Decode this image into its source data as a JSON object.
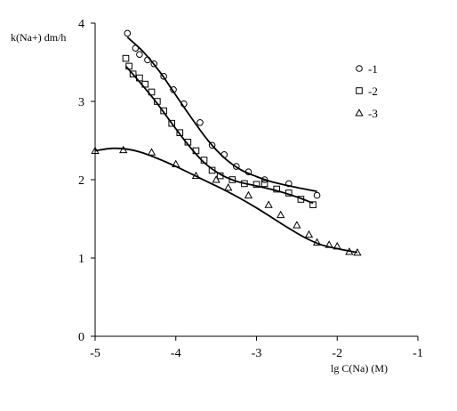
{
  "chart_data": {
    "type": "scatter",
    "title": "",
    "xlabel": "lg C(Na) (M)",
    "ylabel": "k(Na+) dm/h",
    "xlim": [
      -5,
      -1
    ],
    "ylim": [
      0,
      4
    ],
    "x_ticks": [
      "-5",
      "-4",
      "-3",
      "-2",
      "-1"
    ],
    "y_ticks": [
      "0",
      "1",
      "2",
      "3",
      "4"
    ],
    "grid": false,
    "legend_position": "top-right",
    "color": "#000000",
    "series": [
      {
        "name": "-1",
        "marker": "circle",
        "points": [
          [
            -4.6,
            3.87
          ],
          [
            -4.5,
            3.68
          ],
          [
            -4.45,
            3.6
          ],
          [
            -4.35,
            3.53
          ],
          [
            -4.27,
            3.48
          ],
          [
            -4.15,
            3.32
          ],
          [
            -4.03,
            3.15
          ],
          [
            -3.9,
            2.97
          ],
          [
            -3.7,
            2.73
          ],
          [
            -3.55,
            2.44
          ],
          [
            -3.4,
            2.32
          ],
          [
            -3.25,
            2.17
          ],
          [
            -3.1,
            2.1
          ],
          [
            -2.9,
            2.0
          ],
          [
            -2.6,
            1.95
          ],
          [
            -2.25,
            1.8
          ]
        ],
        "fit": [
          [
            -4.6,
            3.82
          ],
          [
            -4.4,
            3.63
          ],
          [
            -4.2,
            3.38
          ],
          [
            -4.0,
            3.08
          ],
          [
            -3.8,
            2.78
          ],
          [
            -3.6,
            2.5
          ],
          [
            -3.4,
            2.28
          ],
          [
            -3.2,
            2.13
          ],
          [
            -3.0,
            2.04
          ],
          [
            -2.8,
            1.97
          ],
          [
            -2.5,
            1.9
          ],
          [
            -2.25,
            1.85
          ]
        ]
      },
      {
        "name": "-2",
        "marker": "square",
        "points": [
          [
            -4.62,
            3.55
          ],
          [
            -4.58,
            3.45
          ],
          [
            -4.53,
            3.35
          ],
          [
            -4.45,
            3.3
          ],
          [
            -4.38,
            3.22
          ],
          [
            -4.3,
            3.12
          ],
          [
            -4.23,
            3.0
          ],
          [
            -4.15,
            2.88
          ],
          [
            -4.05,
            2.72
          ],
          [
            -3.95,
            2.6
          ],
          [
            -3.85,
            2.48
          ],
          [
            -3.75,
            2.37
          ],
          [
            -3.65,
            2.25
          ],
          [
            -3.55,
            2.12
          ],
          [
            -3.45,
            2.05
          ],
          [
            -3.3,
            2.0
          ],
          [
            -3.15,
            1.95
          ],
          [
            -3.0,
            1.94
          ],
          [
            -2.9,
            1.95
          ],
          [
            -2.75,
            1.88
          ],
          [
            -2.6,
            1.83
          ],
          [
            -2.45,
            1.75
          ],
          [
            -2.3,
            1.68
          ]
        ],
        "fit": [
          [
            -4.62,
            3.45
          ],
          [
            -4.45,
            3.25
          ],
          [
            -4.25,
            3.0
          ],
          [
            -4.05,
            2.72
          ],
          [
            -3.85,
            2.45
          ],
          [
            -3.65,
            2.22
          ],
          [
            -3.45,
            2.07
          ],
          [
            -3.25,
            1.98
          ],
          [
            -3.0,
            1.92
          ],
          [
            -2.75,
            1.86
          ],
          [
            -2.5,
            1.78
          ],
          [
            -2.3,
            1.7
          ]
        ]
      },
      {
        "name": "-3",
        "marker": "triangle",
        "points": [
          [
            -5.0,
            2.37
          ],
          [
            -4.65,
            2.38
          ],
          [
            -4.3,
            2.35
          ],
          [
            -4.0,
            2.2
          ],
          [
            -3.75,
            2.05
          ],
          [
            -3.5,
            2.0
          ],
          [
            -3.35,
            1.9
          ],
          [
            -3.1,
            1.8
          ],
          [
            -2.85,
            1.68
          ],
          [
            -2.7,
            1.55
          ],
          [
            -2.5,
            1.42
          ],
          [
            -2.35,
            1.3
          ],
          [
            -2.25,
            1.2
          ],
          [
            -2.1,
            1.17
          ],
          [
            -2.0,
            1.15
          ],
          [
            -1.85,
            1.08
          ],
          [
            -1.75,
            1.07
          ]
        ],
        "fit": [
          [
            -5.0,
            2.37
          ],
          [
            -4.8,
            2.4
          ],
          [
            -4.6,
            2.39
          ],
          [
            -4.4,
            2.34
          ],
          [
            -4.2,
            2.26
          ],
          [
            -4.0,
            2.17
          ],
          [
            -3.8,
            2.07
          ],
          [
            -3.6,
            1.97
          ],
          [
            -3.4,
            1.87
          ],
          [
            -3.2,
            1.76
          ],
          [
            -3.0,
            1.64
          ],
          [
            -2.8,
            1.51
          ],
          [
            -2.6,
            1.38
          ],
          [
            -2.4,
            1.26
          ],
          [
            -2.2,
            1.17
          ],
          [
            -2.0,
            1.12
          ],
          [
            -1.75,
            1.07
          ]
        ]
      }
    ]
  }
}
